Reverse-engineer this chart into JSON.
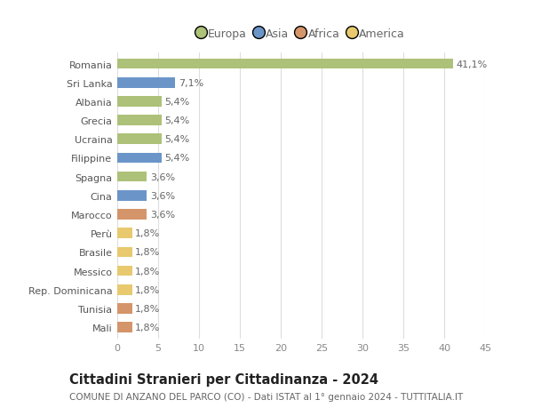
{
  "countries": [
    "Romania",
    "Sri Lanka",
    "Albania",
    "Grecia",
    "Ucraina",
    "Filippine",
    "Spagna",
    "Cina",
    "Marocco",
    "Perù",
    "Brasile",
    "Messico",
    "Rep. Dominicana",
    "Tunisia",
    "Mali"
  ],
  "values": [
    41.1,
    7.1,
    5.4,
    5.4,
    5.4,
    5.4,
    3.6,
    3.6,
    3.6,
    1.8,
    1.8,
    1.8,
    1.8,
    1.8,
    1.8
  ],
  "labels": [
    "41,1%",
    "7,1%",
    "5,4%",
    "5,4%",
    "5,4%",
    "5,4%",
    "3,6%",
    "3,6%",
    "3,6%",
    "1,8%",
    "1,8%",
    "1,8%",
    "1,8%",
    "1,8%",
    "1,8%"
  ],
  "colors": [
    "#adc178",
    "#6b95c8",
    "#adc178",
    "#adc178",
    "#adc178",
    "#6b95c8",
    "#adc178",
    "#6b95c8",
    "#d4956a",
    "#e8c96e",
    "#e8c96e",
    "#e8c96e",
    "#e8c96e",
    "#d4956a",
    "#d4956a"
  ],
  "legend_labels": [
    "Europa",
    "Asia",
    "Africa",
    "America"
  ],
  "legend_colors": [
    "#adc178",
    "#6b95c8",
    "#d4956a",
    "#e8c96e"
  ],
  "title": "Cittadini Stranieri per Cittadinanza - 2024",
  "subtitle": "COMUNE DI ANZANO DEL PARCO (CO) - Dati ISTAT al 1° gennaio 2024 - TUTTITALIA.IT",
  "xlim": [
    0,
    45
  ],
  "xticks": [
    0,
    5,
    10,
    15,
    20,
    25,
    30,
    35,
    40,
    45
  ],
  "background_color": "#ffffff",
  "bar_height": 0.55,
  "label_fontsize": 8,
  "title_fontsize": 10.5,
  "subtitle_fontsize": 7.5,
  "tick_fontsize": 8,
  "ytick_fontsize": 8
}
